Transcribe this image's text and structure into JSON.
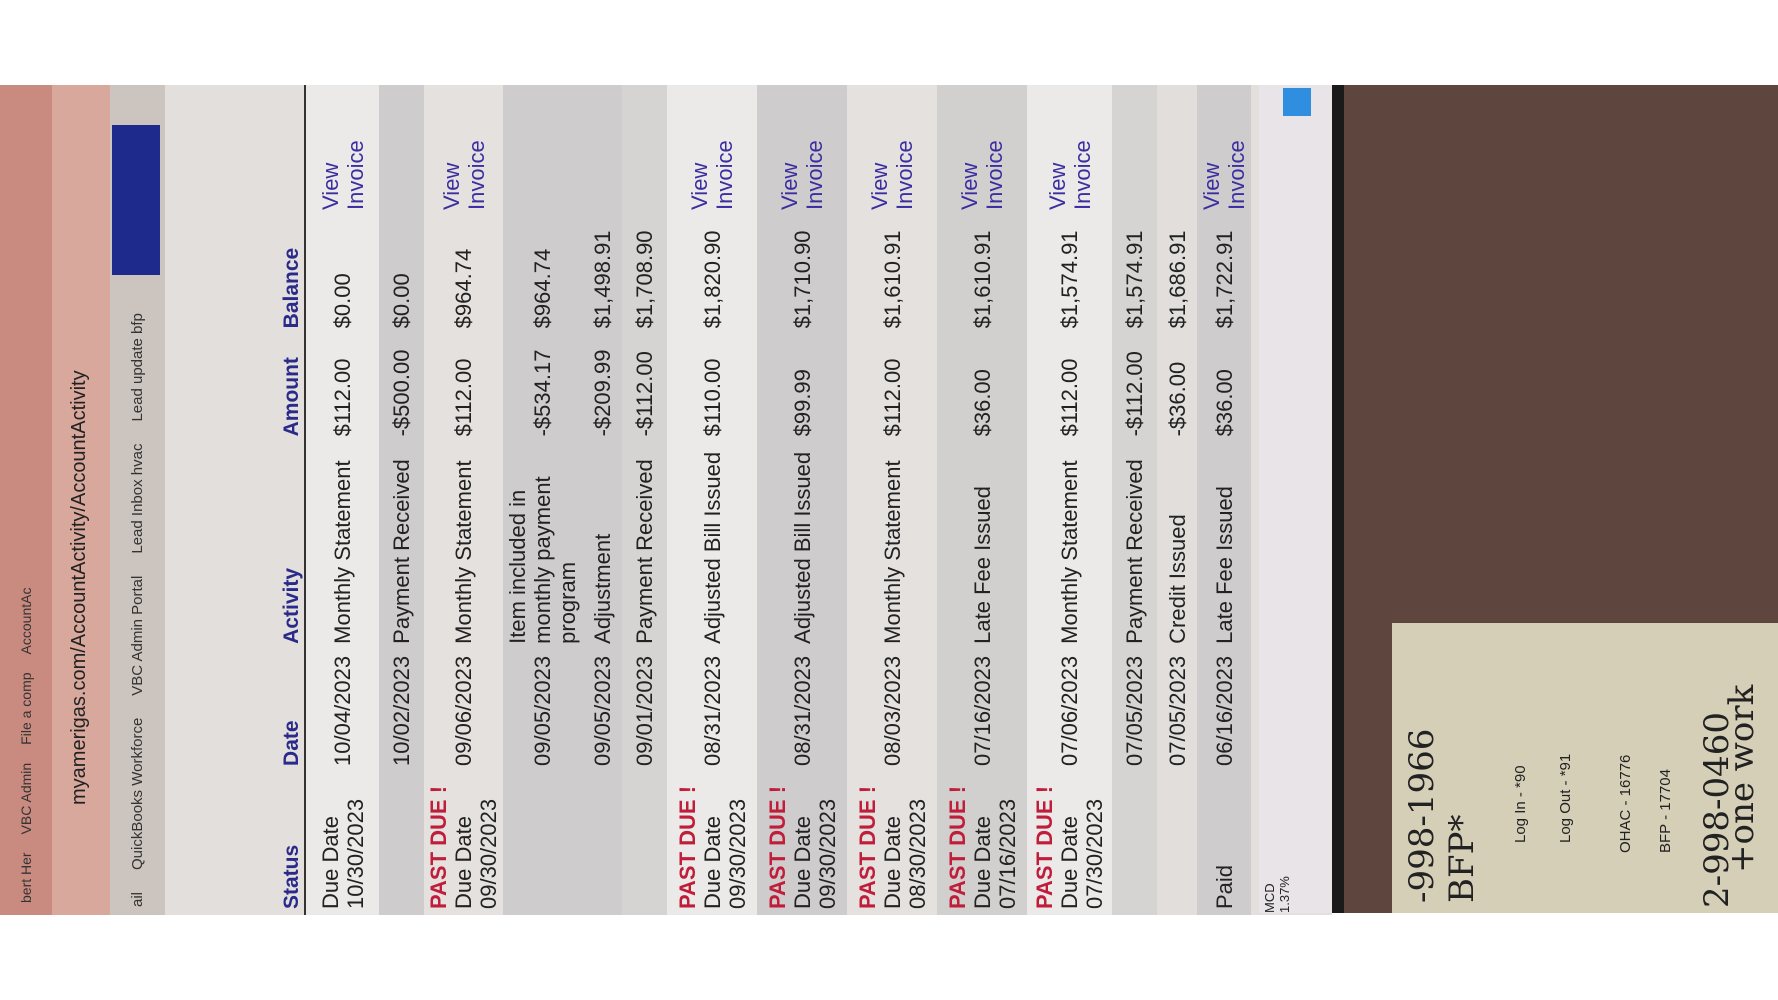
{
  "browser": {
    "tabs": [
      "bert Her",
      "VBC Admin",
      "File a comp",
      "AccountAc"
    ],
    "url": "myamerigas.com/AccountActivity/AccountActivity",
    "bookmarks": [
      "ail",
      "QuickBooks Workforce",
      "VBC Admin Portal",
      "Lead Inbox hvac",
      "Lead update bfp"
    ]
  },
  "table": {
    "headers": [
      "Status",
      "Date",
      "Activity",
      "Amount",
      "Balance"
    ],
    "rows": [
      {
        "status": [
          "Due Date",
          "10/30/2023"
        ],
        "date": "10/04/2023",
        "activity": "Monthly Statement",
        "amount": "$112.00",
        "balance": "$0.00",
        "link": "View Invoice"
      },
      {
        "date": "10/02/2023",
        "activity": "Payment Received",
        "amount": "-$500.00",
        "balance": "$0.00"
      },
      {
        "status": [
          "PAST DUE !",
          "Due Date",
          "09/30/2023"
        ],
        "date": "09/06/2023",
        "activity": "Monthly Statement",
        "amount": "$112.00",
        "balance": "$964.74",
        "link": "View Invoice"
      },
      {
        "date": "09/05/2023",
        "activity": "Item included in monthly payment program",
        "amount": "-$534.17",
        "balance": "$964.74"
      },
      {
        "date": "09/05/2023",
        "activity": "Adjustment",
        "amount": "-$209.99",
        "balance": "$1,498.91"
      },
      {
        "date": "09/01/2023",
        "activity": "Payment Received",
        "amount": "-$112.00",
        "balance": "$1,708.90"
      },
      {
        "status": [
          "PAST DUE !",
          "Due Date",
          "09/30/2023"
        ],
        "date": "08/31/2023",
        "activity": "Adjusted Bill Issued",
        "amount": "$110.00",
        "balance": "$1,820.90",
        "link": "View Invoice"
      },
      {
        "status": [
          "PAST DUE !",
          "Due Date",
          "09/30/2023"
        ],
        "date": "08/31/2023",
        "activity": "Adjusted Bill Issued",
        "amount": "$99.99",
        "balance": "$1,710.90",
        "link": "View Invoice"
      },
      {
        "status": [
          "PAST DUE !",
          "Due Date",
          "08/30/2023"
        ],
        "date": "08/03/2023",
        "activity": "Monthly Statement",
        "amount": "$112.00",
        "balance": "$1,610.91",
        "link": "View Invoice"
      },
      {
        "status": [
          "PAST DUE !",
          "Due Date",
          "07/16/2023"
        ],
        "date": "07/16/2023",
        "activity": "Late Fee Issued",
        "amount": "$36.00",
        "balance": "$1,610.91",
        "link": "View Invoice"
      },
      {
        "status": [
          "PAST DUE !",
          "Due Date",
          "07/30/2023"
        ],
        "date": "07/06/2023",
        "activity": "Monthly Statement",
        "amount": "$112.00",
        "balance": "$1,574.91",
        "link": "View Invoice"
      },
      {
        "date": "07/05/2023",
        "activity": "Payment Received",
        "amount": "-$112.00",
        "balance": "$1,574.91"
      },
      {
        "date": "07/05/2023",
        "activity": "Credit Issued",
        "amount": "-$36.00",
        "balance": "$1,686.91"
      },
      {
        "status": [
          "Paid"
        ],
        "date": "06/16/2023",
        "activity": "Late Fee Issued",
        "amount": "$36.00",
        "balance": "$1,722.91",
        "link": "View Invoice"
      }
    ]
  },
  "taskbar": [
    "MCD",
    "1.37%"
  ],
  "note": [
    "-998-1966",
    "BFP*",
    "Log In - *90",
    "Log Out - *91",
    "OHAC - 16776",
    "BFP - 17704",
    "2-998-0460",
    "+one work"
  ]
}
